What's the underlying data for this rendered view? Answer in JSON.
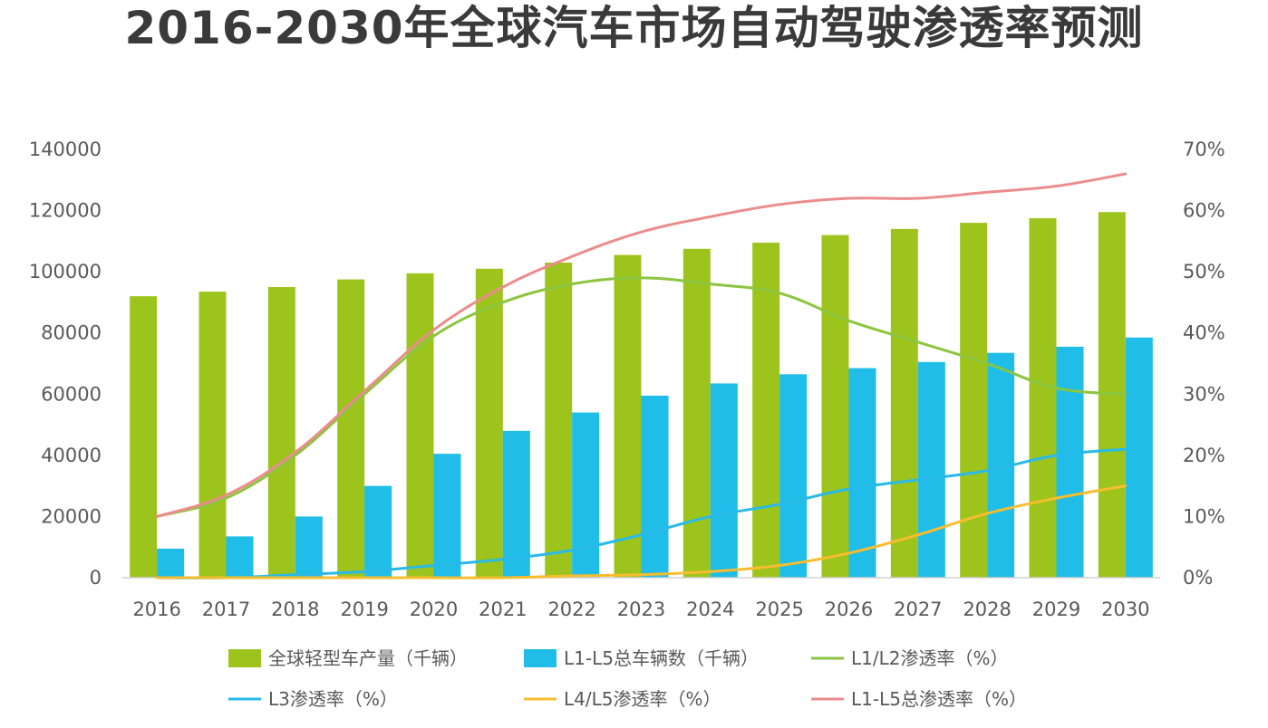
{
  "chart_data": {
    "type": "bar",
    "title": "2016-2030年全球汽车市场自动驾驶渗透率预测",
    "categories": [
      "2016",
      "2017",
      "2018",
      "2019",
      "2020",
      "2021",
      "2022",
      "2023",
      "2024",
      "2025",
      "2026",
      "2027",
      "2028",
      "2029",
      "2030"
    ],
    "y_left": {
      "ylim": [
        0,
        140000
      ],
      "ticks": [
        "0",
        "20000",
        "40000",
        "60000",
        "80000",
        "100000",
        "120000",
        "140000"
      ]
    },
    "y_right": {
      "ylim": [
        0,
        70
      ],
      "ticks": [
        "0%",
        "10%",
        "20%",
        "30%",
        "40%",
        "50%",
        "60%",
        "70%"
      ]
    },
    "grid": false,
    "legend_position": "bottom",
    "bar_series": [
      {
        "name": "全球轻型车产量（千辆）",
        "color": "#9dc41d",
        "values": [
          92000,
          93500,
          95000,
          97500,
          99500,
          101000,
          103000,
          105500,
          107500,
          109500,
          112000,
          114000,
          116000,
          117500,
          119500
        ]
      },
      {
        "name": "L1-L5总车辆数（千辆）",
        "color": "#1fbde8",
        "values": [
          9500,
          13500,
          20000,
          30000,
          40500,
          48000,
          54000,
          59500,
          63500,
          66500,
          68500,
          70500,
          73500,
          75500,
          78500
        ]
      }
    ],
    "line_series": [
      {
        "name": "L1/L2渗透率（%）",
        "color": "#8cc53f",
        "axis": "right",
        "values": [
          10,
          13,
          20,
          30,
          39.5,
          45,
          48,
          49,
          48,
          46.5,
          42,
          38.5,
          35,
          31,
          30
        ]
      },
      {
        "name": "L3渗透率（%）",
        "color": "#29b9e8",
        "axis": "right",
        "values": [
          0,
          0,
          0.5,
          1,
          2,
          3,
          4.5,
          7,
          10,
          12,
          14.5,
          16,
          17.5,
          20,
          21
        ]
      },
      {
        "name": "L4/L5渗透率（%）",
        "color": "#f7bd2e",
        "axis": "right",
        "values": [
          0,
          0,
          0,
          0,
          0,
          0,
          0.3,
          0.5,
          1,
          2,
          4,
          7,
          10.5,
          13,
          15
        ]
      },
      {
        "name": "L1-L5总渗透率（%）",
        "color": "#ec8c8c",
        "axis": "right",
        "values": [
          10,
          13.5,
          20.5,
          30.5,
          40.5,
          47.5,
          52.5,
          56.5,
          59,
          61,
          62,
          62,
          63,
          64,
          66
        ]
      }
    ]
  }
}
